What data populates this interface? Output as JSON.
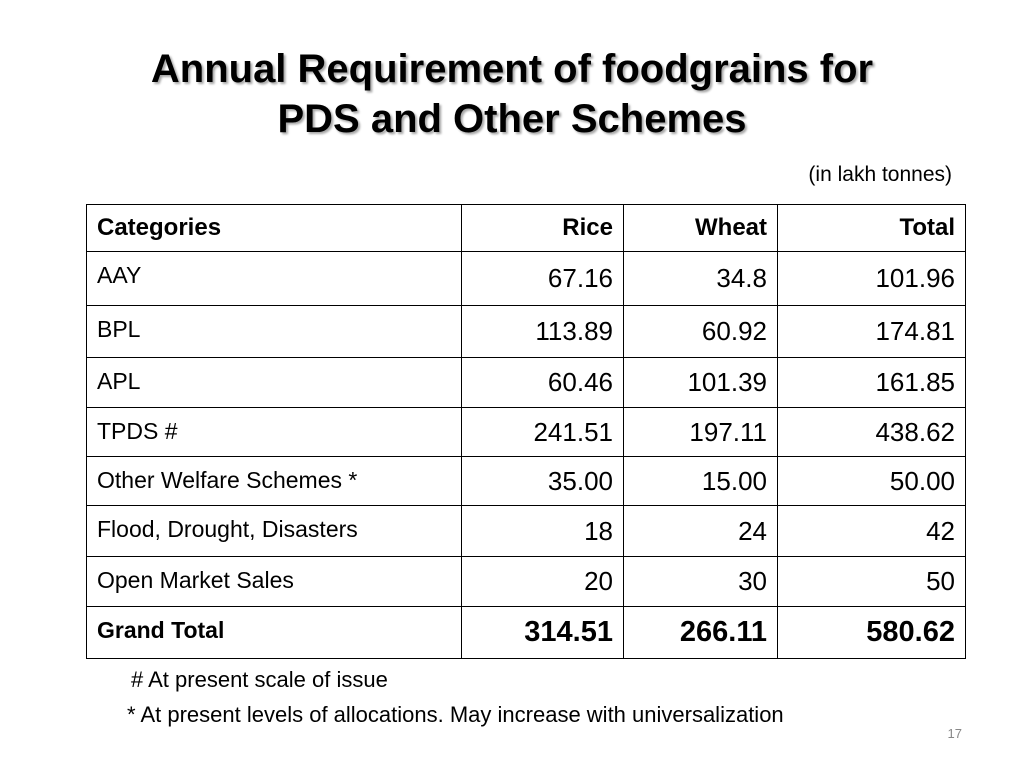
{
  "title": {
    "line1": "Annual Requirement of foodgrains for",
    "line2": "PDS and Other Schemes"
  },
  "units": "(in lakh tonnes)",
  "table": {
    "headers": [
      "Categories",
      "Rice",
      "Wheat",
      "Total"
    ],
    "rows": [
      [
        "AAY",
        "67.16",
        "34.8",
        "101.96"
      ],
      [
        "BPL",
        "113.89",
        "60.92",
        "174.81"
      ],
      [
        "APL",
        "60.46",
        "101.39",
        "161.85"
      ],
      [
        "TPDS #",
        "241.51",
        "197.11",
        "438.62"
      ],
      [
        "Other Welfare Schemes *",
        "35.00",
        "15.00",
        "50.00"
      ],
      [
        "Flood, Drought, Disasters",
        "18",
        "24",
        "42"
      ],
      [
        "Open Market Sales",
        "20",
        "30",
        "50"
      ],
      [
        "Grand Total",
        "314.51",
        "266.11",
        "580.62"
      ]
    ]
  },
  "footnotes": {
    "hash": "# At present scale of issue",
    "star": "* At present levels of allocations. May increase with universalization"
  },
  "page_number": "17"
}
